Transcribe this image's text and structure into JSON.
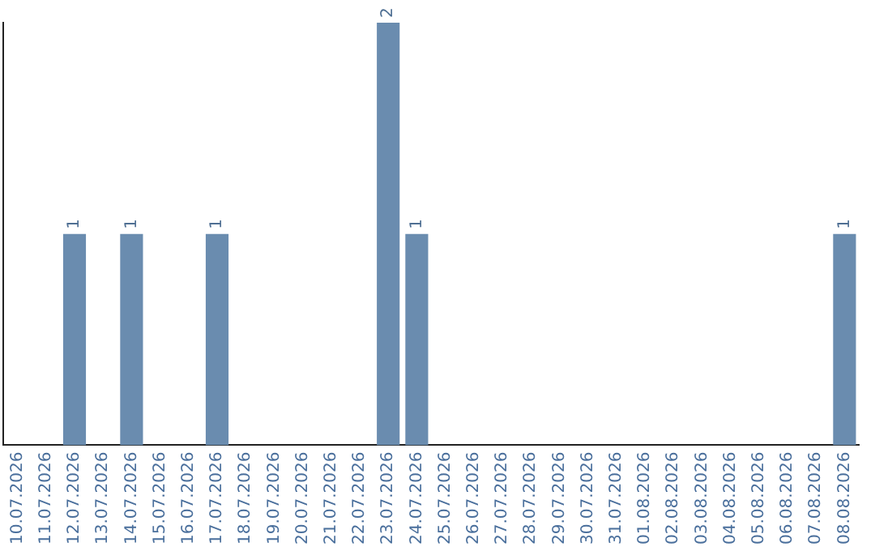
{
  "chart_data": {
    "type": "bar",
    "categories": [
      "10.07.2026",
      "11.07.2026",
      "12.07.2026",
      "13.07.2026",
      "14.07.2026",
      "15.07.2026",
      "16.07.2026",
      "17.07.2026",
      "18.07.2026",
      "19.07.2026",
      "20.07.2026",
      "21.07.2026",
      "22.07.2026",
      "23.07.2026",
      "24.07.2026",
      "25.07.2026",
      "26.07.2026",
      "27.07.2026",
      "28.07.2026",
      "29.07.2026",
      "30.07.2026",
      "31.07.2026",
      "01.08.2026",
      "02.08.2026",
      "03.08.2026",
      "04.08.2026",
      "05.08.2026",
      "06.08.2026",
      "07.08.2026",
      "08.08.2026"
    ],
    "values": [
      0,
      0,
      1,
      0,
      1,
      0,
      0,
      1,
      0,
      0,
      0,
      0,
      0,
      2,
      1,
      0,
      0,
      0,
      0,
      0,
      0,
      0,
      0,
      0,
      0,
      0,
      0,
      0,
      0,
      1
    ],
    "value_labels": [
      null,
      null,
      "1",
      null,
      "1",
      null,
      null,
      "1",
      null,
      null,
      null,
      null,
      null,
      "2",
      "1",
      null,
      null,
      null,
      null,
      null,
      null,
      null,
      null,
      null,
      null,
      null,
      null,
      null,
      null,
      "1"
    ],
    "color": "#6a8caf",
    "tick_labels": "x",
    "grid": false,
    "legend": false
  }
}
